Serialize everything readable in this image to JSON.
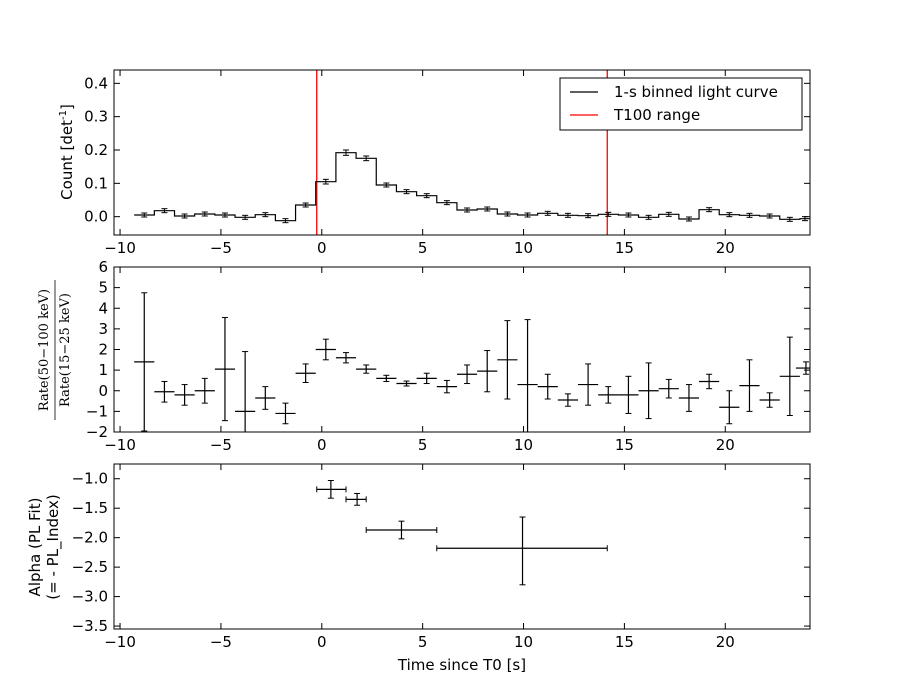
{
  "figure": {
    "xlabel": "Time since T0 [s]",
    "x_ticks": [
      -10,
      -5,
      0,
      5,
      10,
      15,
      20
    ],
    "xlim": [
      -10.3,
      24.2
    ]
  },
  "chart_data": [
    {
      "type": "line",
      "panel": "light-curve",
      "ylabel": "Count [det",
      "ylabel_sup": "-1",
      "ylabel_close": "]",
      "ylim": [
        -0.055,
        0.44
      ],
      "y_ticks": [
        "0.0",
        "0.1",
        "0.2",
        "0.3",
        "0.4"
      ],
      "y_tick_values": [
        0.0,
        0.1,
        0.2,
        0.3,
        0.4
      ],
      "legend": {
        "placement": "top-right",
        "entries": [
          {
            "label": "1-s binned light curve",
            "color": "#000000"
          },
          {
            "label": "T100 range",
            "color": "#ff0000"
          }
        ]
      },
      "t100_range": [
        -0.25,
        14.15
      ],
      "series": [
        {
          "name": "1-s binned light curve",
          "bin_edges": [
            -9.3,
            -8.3,
            -7.3,
            -6.3,
            -5.3,
            -4.3,
            -3.3,
            -2.3,
            -1.3,
            -0.3,
            0.7,
            1.7,
            2.7,
            3.7,
            4.7,
            5.7,
            6.7,
            7.7,
            8.7,
            9.7,
            10.7,
            11.7,
            12.7,
            13.7,
            14.7,
            15.7,
            16.7,
            17.7,
            18.7,
            19.7,
            20.7,
            21.7,
            22.7,
            23.7,
            24.2
          ],
          "values": [
            0.005,
            0.018,
            0.002,
            0.008,
            0.005,
            -0.002,
            0.006,
            -0.012,
            0.035,
            0.105,
            0.192,
            0.175,
            0.095,
            0.075,
            0.063,
            0.042,
            0.02,
            0.023,
            0.008,
            0.005,
            0.01,
            0.004,
            0.003,
            0.007,
            0.005,
            -0.002,
            0.007,
            -0.007,
            0.021,
            0.006,
            0.004,
            0.002,
            -0.008,
            -0.006
          ],
          "errors": [
            0.006,
            0.006,
            0.006,
            0.006,
            0.006,
            0.006,
            0.006,
            0.006,
            0.006,
            0.007,
            0.008,
            0.007,
            0.006,
            0.006,
            0.006,
            0.006,
            0.006,
            0.006,
            0.006,
            0.006,
            0.006,
            0.006,
            0.006,
            0.006,
            0.006,
            0.006,
            0.006,
            0.006,
            0.006,
            0.006,
            0.006,
            0.006,
            0.006,
            0.006
          ]
        }
      ]
    },
    {
      "type": "scatter",
      "panel": "hardness-ratio",
      "ylabel_num": "Rate(50−100 keV)",
      "ylabel_den": "Rate(15−25 keV)",
      "ylim": [
        -2,
        6
      ],
      "y_ticks": [
        "−2",
        "−1",
        "0",
        "1",
        "2",
        "3",
        "4",
        "5",
        "6"
      ],
      "y_tick_values": [
        -2,
        -1,
        0,
        1,
        2,
        3,
        4,
        5,
        6
      ],
      "series": [
        {
          "x": [
            -8.8,
            -7.8,
            -6.8,
            -5.8,
            -4.8,
            -3.8,
            -2.8,
            -1.8,
            -0.8,
            0.2,
            1.2,
            2.2,
            3.2,
            4.2,
            5.2,
            6.2,
            7.2,
            8.2,
            9.2,
            10.2,
            11.2,
            12.2,
            13.2,
            14.2,
            15.2,
            16.2,
            17.2,
            18.2,
            19.2,
            20.2,
            21.2,
            22.2,
            23.2,
            24.0
          ],
          "y": [
            1.4,
            -0.05,
            -0.2,
            0.0,
            1.05,
            -1.0,
            -0.35,
            -1.1,
            0.85,
            2.0,
            1.6,
            1.05,
            0.6,
            0.35,
            0.6,
            0.2,
            0.8,
            0.95,
            1.5,
            0.3,
            0.2,
            -0.45,
            0.3,
            -0.2,
            -0.2,
            0.0,
            0.1,
            -0.35,
            0.45,
            -0.8,
            0.25,
            -0.45,
            0.7,
            1.1
          ],
          "yerr": [
            3.35,
            0.5,
            0.5,
            0.6,
            2.5,
            2.9,
            0.55,
            0.5,
            0.45,
            0.5,
            0.25,
            0.2,
            0.15,
            0.12,
            0.25,
            0.3,
            0.45,
            1.0,
            1.9,
            3.15,
            0.6,
            0.3,
            1.0,
            0.4,
            0.9,
            1.35,
            0.45,
            0.65,
            0.35,
            0.8,
            1.25,
            0.35,
            1.9,
            0.3
          ],
          "xerr": 0.5
        }
      ]
    },
    {
      "type": "scatter",
      "panel": "spectral-index",
      "ylabel_line1": "Alpha (PL Fit)",
      "ylabel_line2": "(= - PL_Index)",
      "ylim": [
        -3.55,
        -0.75
      ],
      "y_ticks": [
        "−1.0",
        "−1.5",
        "−2.0",
        "−2.5",
        "−3.0",
        "−3.5"
      ],
      "y_tick_values": [
        -1.0,
        -1.5,
        -2.0,
        -2.5,
        -3.0,
        -3.5
      ],
      "series": [
        {
          "x": [
            0.45,
            1.75,
            3.95,
            9.95
          ],
          "x_lo": [
            -0.25,
            1.2,
            2.2,
            5.7
          ],
          "x_hi": [
            1.2,
            2.2,
            5.7,
            14.15
          ],
          "y": [
            -1.18,
            -1.35,
            -1.87,
            -2.18
          ],
          "y_lo": [
            -1.33,
            -1.45,
            -2.02,
            -2.8
          ],
          "y_hi": [
            -1.03,
            -1.25,
            -1.72,
            -1.65
          ]
        }
      ]
    }
  ]
}
